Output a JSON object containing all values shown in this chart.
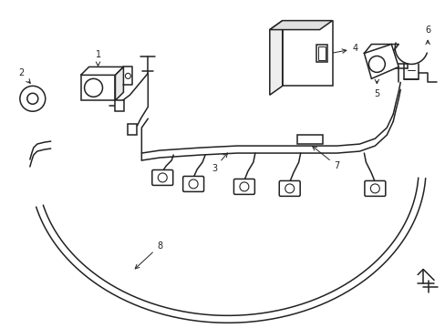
{
  "bg_color": "#ffffff",
  "line_color": "#222222",
  "lw": 1.1,
  "fig_w": 4.89,
  "fig_h": 3.6,
  "dpi": 100
}
